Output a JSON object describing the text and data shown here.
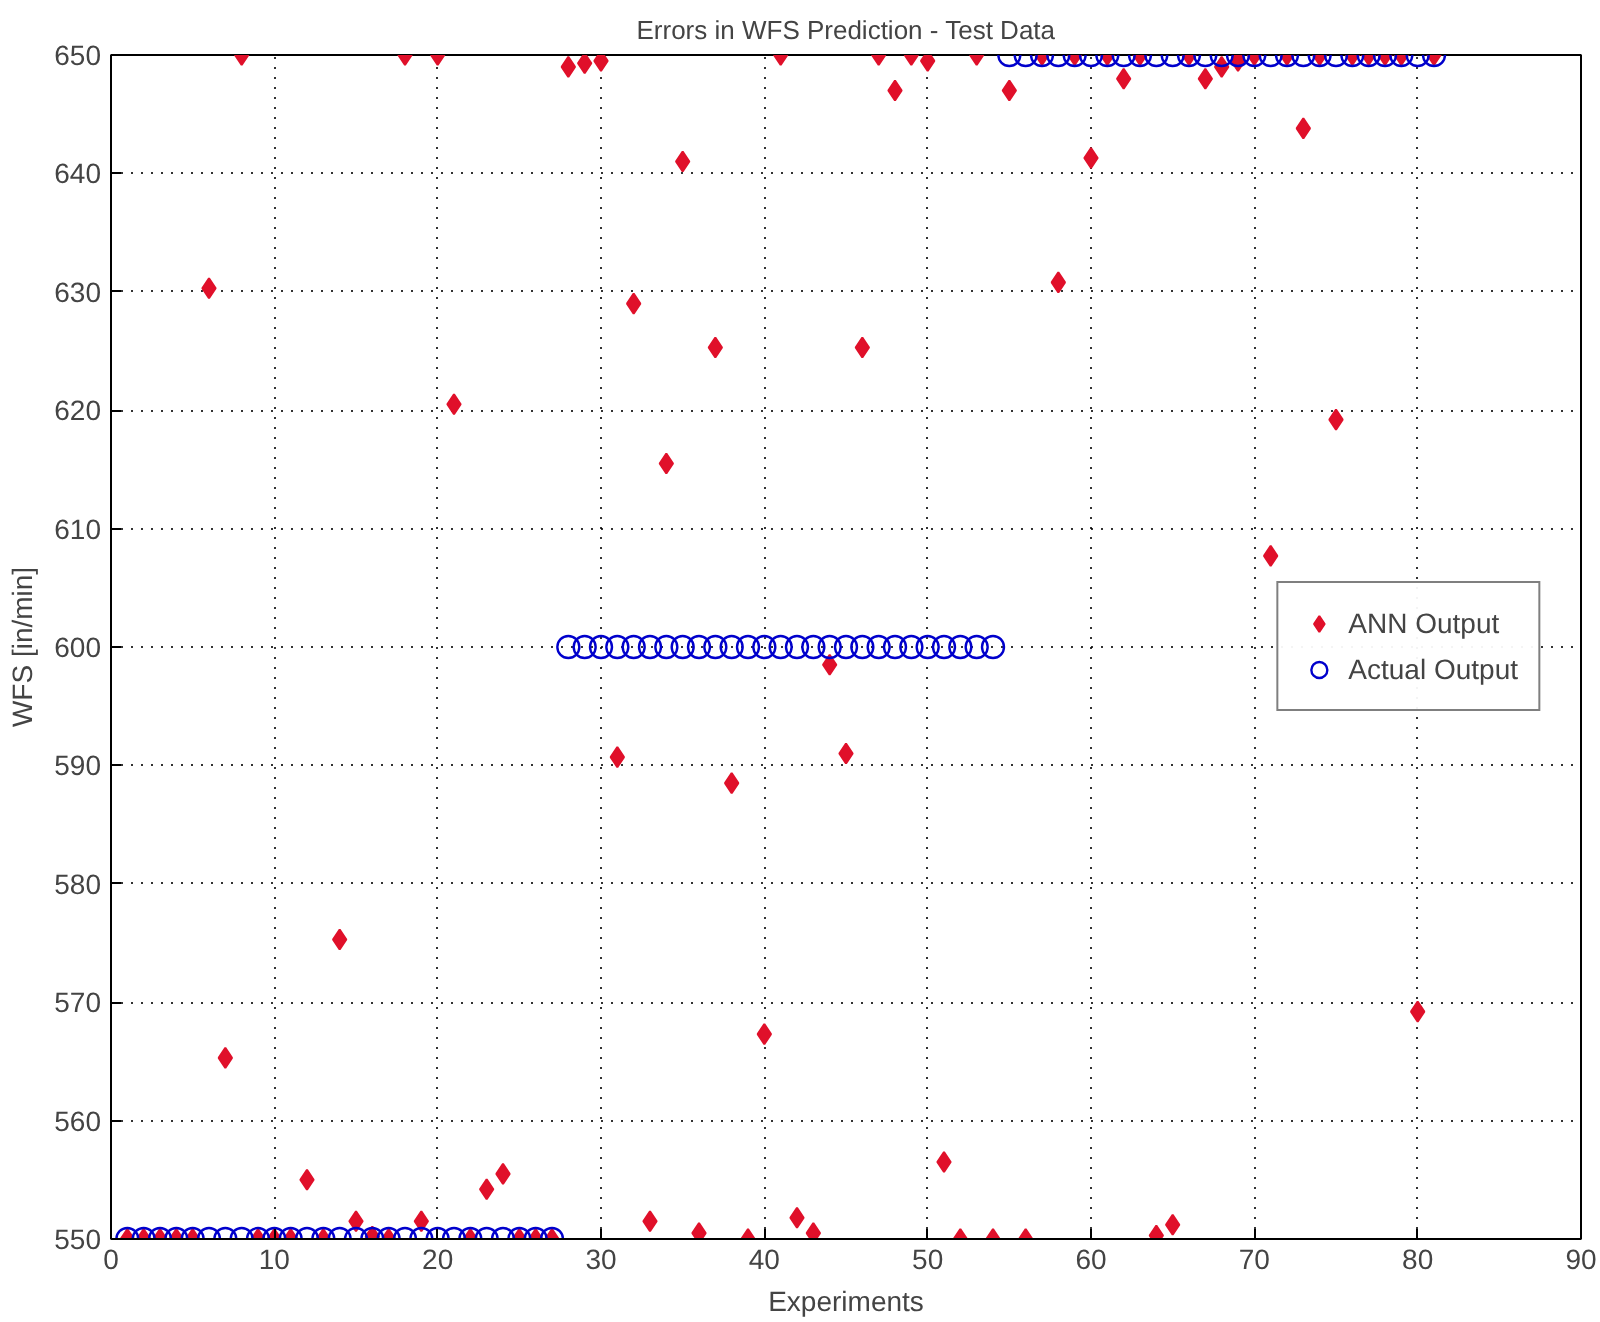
{
  "chart_data": {
    "type": "scatter",
    "title": "Errors in WFS Prediction - Test Data",
    "xlabel": "Experiments",
    "ylabel": "WFS [in/min]",
    "xlim": [
      0,
      90
    ],
    "xticks": [
      0,
      10,
      20,
      30,
      40,
      50,
      60,
      70,
      80,
      90
    ],
    "ylim": [
      550,
      650
    ],
    "yticks": [
      550,
      560,
      570,
      580,
      590,
      600,
      610,
      620,
      630,
      640,
      650
    ],
    "grid": true,
    "legend": "right",
    "series": [
      {
        "name": "ANN Output",
        "color": "#e0102a",
        "marker": "diamond",
        "x": [
          1,
          2,
          3,
          4,
          5,
          6,
          7,
          8,
          9,
          10,
          11,
          12,
          13,
          14,
          15,
          16,
          17,
          18,
          19,
          20,
          21,
          22,
          23,
          24,
          25,
          26,
          27,
          28,
          29,
          30,
          31,
          32,
          33,
          34,
          35,
          36,
          37,
          38,
          39,
          40,
          41,
          42,
          43,
          44,
          45,
          46,
          47,
          48,
          49,
          50,
          51,
          52,
          53,
          54,
          55,
          56,
          57,
          58,
          59,
          60,
          61,
          62,
          63,
          64,
          65,
          66,
          67,
          68,
          69,
          70,
          71,
          72,
          73,
          74,
          75,
          76,
          77,
          78,
          79,
          80,
          81
        ],
        "values": [
          550,
          550,
          550,
          550,
          550,
          630.3,
          565.3,
          650,
          550,
          550,
          550,
          555,
          550,
          575.3,
          551.5,
          550.2,
          550,
          650,
          551.5,
          650,
          620.5,
          550,
          554.2,
          555.5,
          550,
          550,
          550,
          649,
          649.3,
          649.5,
          590.7,
          629,
          551.5,
          615.5,
          641,
          550.5,
          625.3,
          588.5,
          550,
          567.3,
          650,
          551.8,
          550.5,
          598.5,
          591,
          625.3,
          650,
          647,
          650,
          649.5,
          556.5,
          550,
          650,
          550,
          647,
          550,
          650,
          630.8,
          650,
          641.3,
          650,
          648,
          650,
          550.3,
          551.2,
          650,
          648,
          649,
          649.5,
          650,
          607.7,
          650,
          643.8,
          650,
          619.2,
          650,
          650,
          650,
          650,
          569.2,
          650
        ]
      },
      {
        "name": "Actual Output",
        "color": "#0000cc",
        "marker": "circle",
        "x": [
          1,
          2,
          3,
          4,
          5,
          6,
          7,
          8,
          9,
          10,
          11,
          12,
          13,
          14,
          15,
          16,
          17,
          18,
          19,
          20,
          21,
          22,
          23,
          24,
          25,
          26,
          27,
          28,
          29,
          30,
          31,
          32,
          33,
          34,
          35,
          36,
          37,
          38,
          39,
          40,
          41,
          42,
          43,
          44,
          45,
          46,
          47,
          48,
          49,
          50,
          51,
          52,
          53,
          54,
          55,
          56,
          57,
          58,
          59,
          60,
          61,
          62,
          63,
          64,
          65,
          66,
          67,
          68,
          69,
          70,
          71,
          72,
          73,
          74,
          75,
          76,
          77,
          78,
          79,
          80,
          81
        ],
        "values": [
          550,
          550,
          550,
          550,
          550,
          550,
          550,
          550,
          550,
          550,
          550,
          550,
          550,
          550,
          550,
          550,
          550,
          550,
          550,
          550,
          550,
          550,
          550,
          550,
          550,
          550,
          550,
          600,
          600,
          600,
          600,
          600,
          600,
          600,
          600,
          600,
          600,
          600,
          600,
          600,
          600,
          600,
          600,
          600,
          600,
          600,
          600,
          600,
          600,
          600,
          600,
          600,
          600,
          600,
          650,
          650,
          650,
          650,
          650,
          650,
          650,
          650,
          650,
          650,
          650,
          650,
          650,
          650,
          650,
          650,
          650,
          650,
          650,
          650,
          650,
          650,
          650,
          650,
          650,
          650,
          650
        ]
      }
    ]
  }
}
